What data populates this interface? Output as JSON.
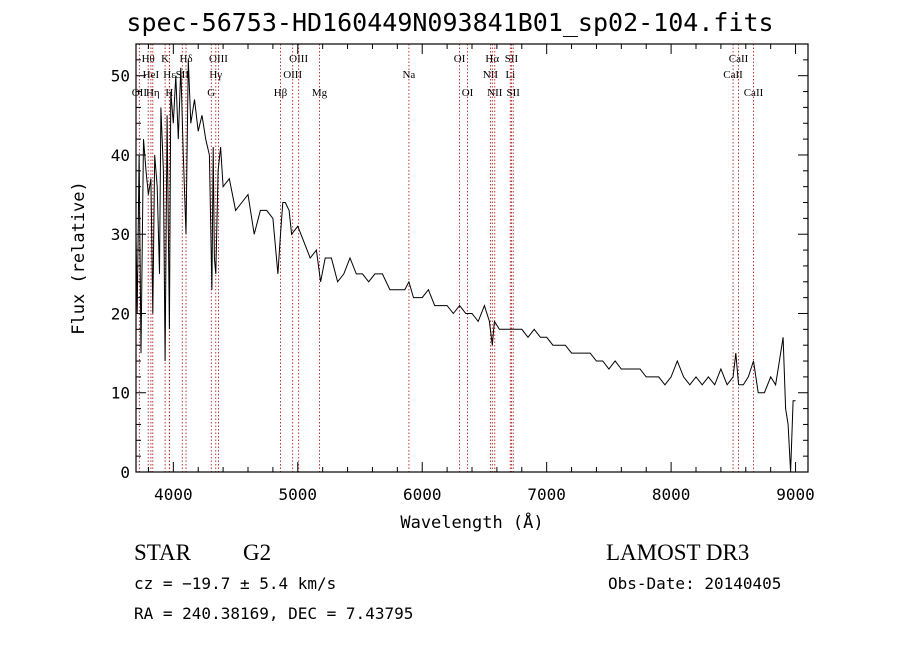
{
  "chart_data": {
    "type": "line",
    "title": "spec-56753-HD160449N093841B01_sp02-104.fits",
    "xlabel": "Wavelength (Å)",
    "ylabel": "Flux (relative)",
    "xlim": [
      3700,
      9100
    ],
    "ylim": [
      0,
      54
    ],
    "xticks": [
      4000,
      5000,
      6000,
      7000,
      8000,
      9000
    ],
    "yticks": [
      0,
      10,
      20,
      30,
      40,
      50
    ],
    "line_color": "#000000",
    "marker_color": "#b22222",
    "series": [
      {
        "name": "flux",
        "x": [
          3700,
          3710,
          3725,
          3740,
          3760,
          3780,
          3800,
          3820,
          3835,
          3850,
          3870,
          3889,
          3900,
          3920,
          3934,
          3950,
          3968,
          3980,
          4000,
          4020,
          4040,
          4060,
          4080,
          4102,
          4120,
          4140,
          4170,
          4200,
          4230,
          4260,
          4290,
          4310,
          4320,
          4330,
          4341,
          4360,
          4380,
          4400,
          4450,
          4500,
          4550,
          4600,
          4650,
          4700,
          4750,
          4800,
          4840,
          4861,
          4880,
          4900,
          4930,
          4950,
          5000,
          5050,
          5100,
          5150,
          5183,
          5220,
          5270,
          5320,
          5370,
          5420,
          5470,
          5520,
          5570,
          5620,
          5680,
          5740,
          5800,
          5860,
          5893,
          5930,
          6000,
          6050,
          6100,
          6150,
          6200,
          6250,
          6300,
          6350,
          6400,
          6450,
          6500,
          6540,
          6563,
          6580,
          6620,
          6650,
          6700,
          6750,
          6800,
          6850,
          6900,
          6950,
          7000,
          7050,
          7100,
          7150,
          7200,
          7250,
          7300,
          7350,
          7400,
          7450,
          7500,
          7550,
          7600,
          7650,
          7700,
          7750,
          7800,
          7850,
          7900,
          7950,
          8000,
          8050,
          8100,
          8150,
          8200,
          8250,
          8300,
          8350,
          8400,
          8450,
          8498,
          8520,
          8542,
          8580,
          8620,
          8662,
          8700,
          8750,
          8800,
          8840,
          8870,
          8900,
          8920,
          8940,
          8960,
          8980,
          9000
        ],
        "y": [
          30,
          20,
          40,
          15,
          42,
          38,
          35,
          37,
          20,
          40,
          36,
          25,
          46,
          38,
          14,
          45,
          18,
          48,
          44,
          50,
          42,
          51,
          40,
          30,
          52,
          44,
          47,
          43,
          45,
          42,
          40,
          23,
          41,
          27,
          25,
          38,
          41,
          36,
          37,
          33,
          34,
          35,
          30,
          33,
          33,
          32,
          25,
          30,
          34,
          34,
          33,
          30,
          31,
          29,
          27,
          28,
          24,
          27,
          27,
          24,
          25,
          27,
          25,
          25,
          24,
          25,
          25,
          23,
          23,
          23,
          24,
          22,
          22,
          23,
          21,
          21,
          21,
          20,
          21,
          20,
          20,
          19,
          21,
          19,
          16,
          19,
          18,
          18,
          18,
          18,
          18,
          17,
          18,
          17,
          17,
          16,
          16,
          16,
          15,
          15,
          15,
          15,
          14,
          14,
          13,
          14,
          13,
          13,
          13,
          13,
          12,
          12,
          12,
          11,
          12,
          14,
          12,
          11,
          12,
          11,
          12,
          11,
          13,
          11,
          12,
          15,
          11,
          11,
          12,
          14,
          10,
          10,
          12,
          11,
          14,
          17,
          8,
          6,
          0,
          9,
          9
        ]
      }
    ],
    "line_markers": [
      {
        "name": "OII",
        "x": 3727,
        "row": 3
      },
      {
        "name": "Hθ",
        "x": 3798,
        "row": 1
      },
      {
        "name": "HeI",
        "x": 3820,
        "row": 2
      },
      {
        "name": "Hη",
        "x": 3835,
        "row": 3
      },
      {
        "name": "K",
        "x": 3934,
        "row": 1
      },
      {
        "name": "H",
        "x": 3968,
        "row": 3
      },
      {
        "name": "Hε",
        "x": 3970,
        "row": 2
      },
      {
        "name": "Hδ",
        "x": 4102,
        "row": 1
      },
      {
        "name": "SII",
        "x": 4072,
        "row": 2
      },
      {
        "name": "OIII",
        "x": 4363,
        "row": 1
      },
      {
        "name": "Hγ",
        "x": 4341,
        "row": 2
      },
      {
        "name": "G",
        "x": 4305,
        "row": 3
      },
      {
        "name": "Hβ",
        "x": 4861,
        "row": 3
      },
      {
        "name": "OIII",
        "x": 4959,
        "row": 2
      },
      {
        "name": "OIII",
        "x": 5007,
        "row": 1
      },
      {
        "name": "Mg",
        "x": 5175,
        "row": 3
      },
      {
        "name": "Na",
        "x": 5893,
        "row": 2
      },
      {
        "name": "OI",
        "x": 6300,
        "row": 1
      },
      {
        "name": "OI",
        "x": 6364,
        "row": 3
      },
      {
        "name": "NII",
        "x": 6548,
        "row": 2
      },
      {
        "name": "Hα",
        "x": 6563,
        "row": 1
      },
      {
        "name": "NII",
        "x": 6583,
        "row": 3
      },
      {
        "name": "Li",
        "x": 6708,
        "row": 2
      },
      {
        "name": "SII",
        "x": 6717,
        "row": 1
      },
      {
        "name": "SII",
        "x": 6731,
        "row": 3
      },
      {
        "name": "CaII",
        "x": 8498,
        "row": 2
      },
      {
        "name": "CaII",
        "x": 8542,
        "row": 1
      },
      {
        "name": "CaII",
        "x": 8662,
        "row": 3
      }
    ]
  },
  "info": {
    "object_class": "STAR",
    "subclass": "G2",
    "survey": "LAMOST DR3",
    "redshift": "cz = −19.7 ± 5.4 km/s",
    "obs_date": "Obs-Date: 20140405",
    "coords": "RA = 240.38169, DEC =    7.43795"
  }
}
